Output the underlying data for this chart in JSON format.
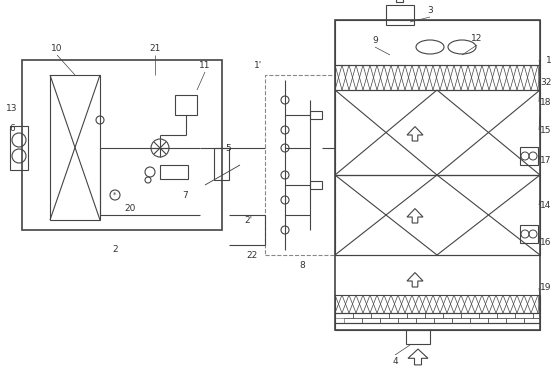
{
  "bg_color": "#ffffff",
  "line_color": "#444444",
  "line_width": 0.8,
  "thick_line": 1.2,
  "fig_width": 5.57,
  "fig_height": 3.71,
  "dpi": 100
}
